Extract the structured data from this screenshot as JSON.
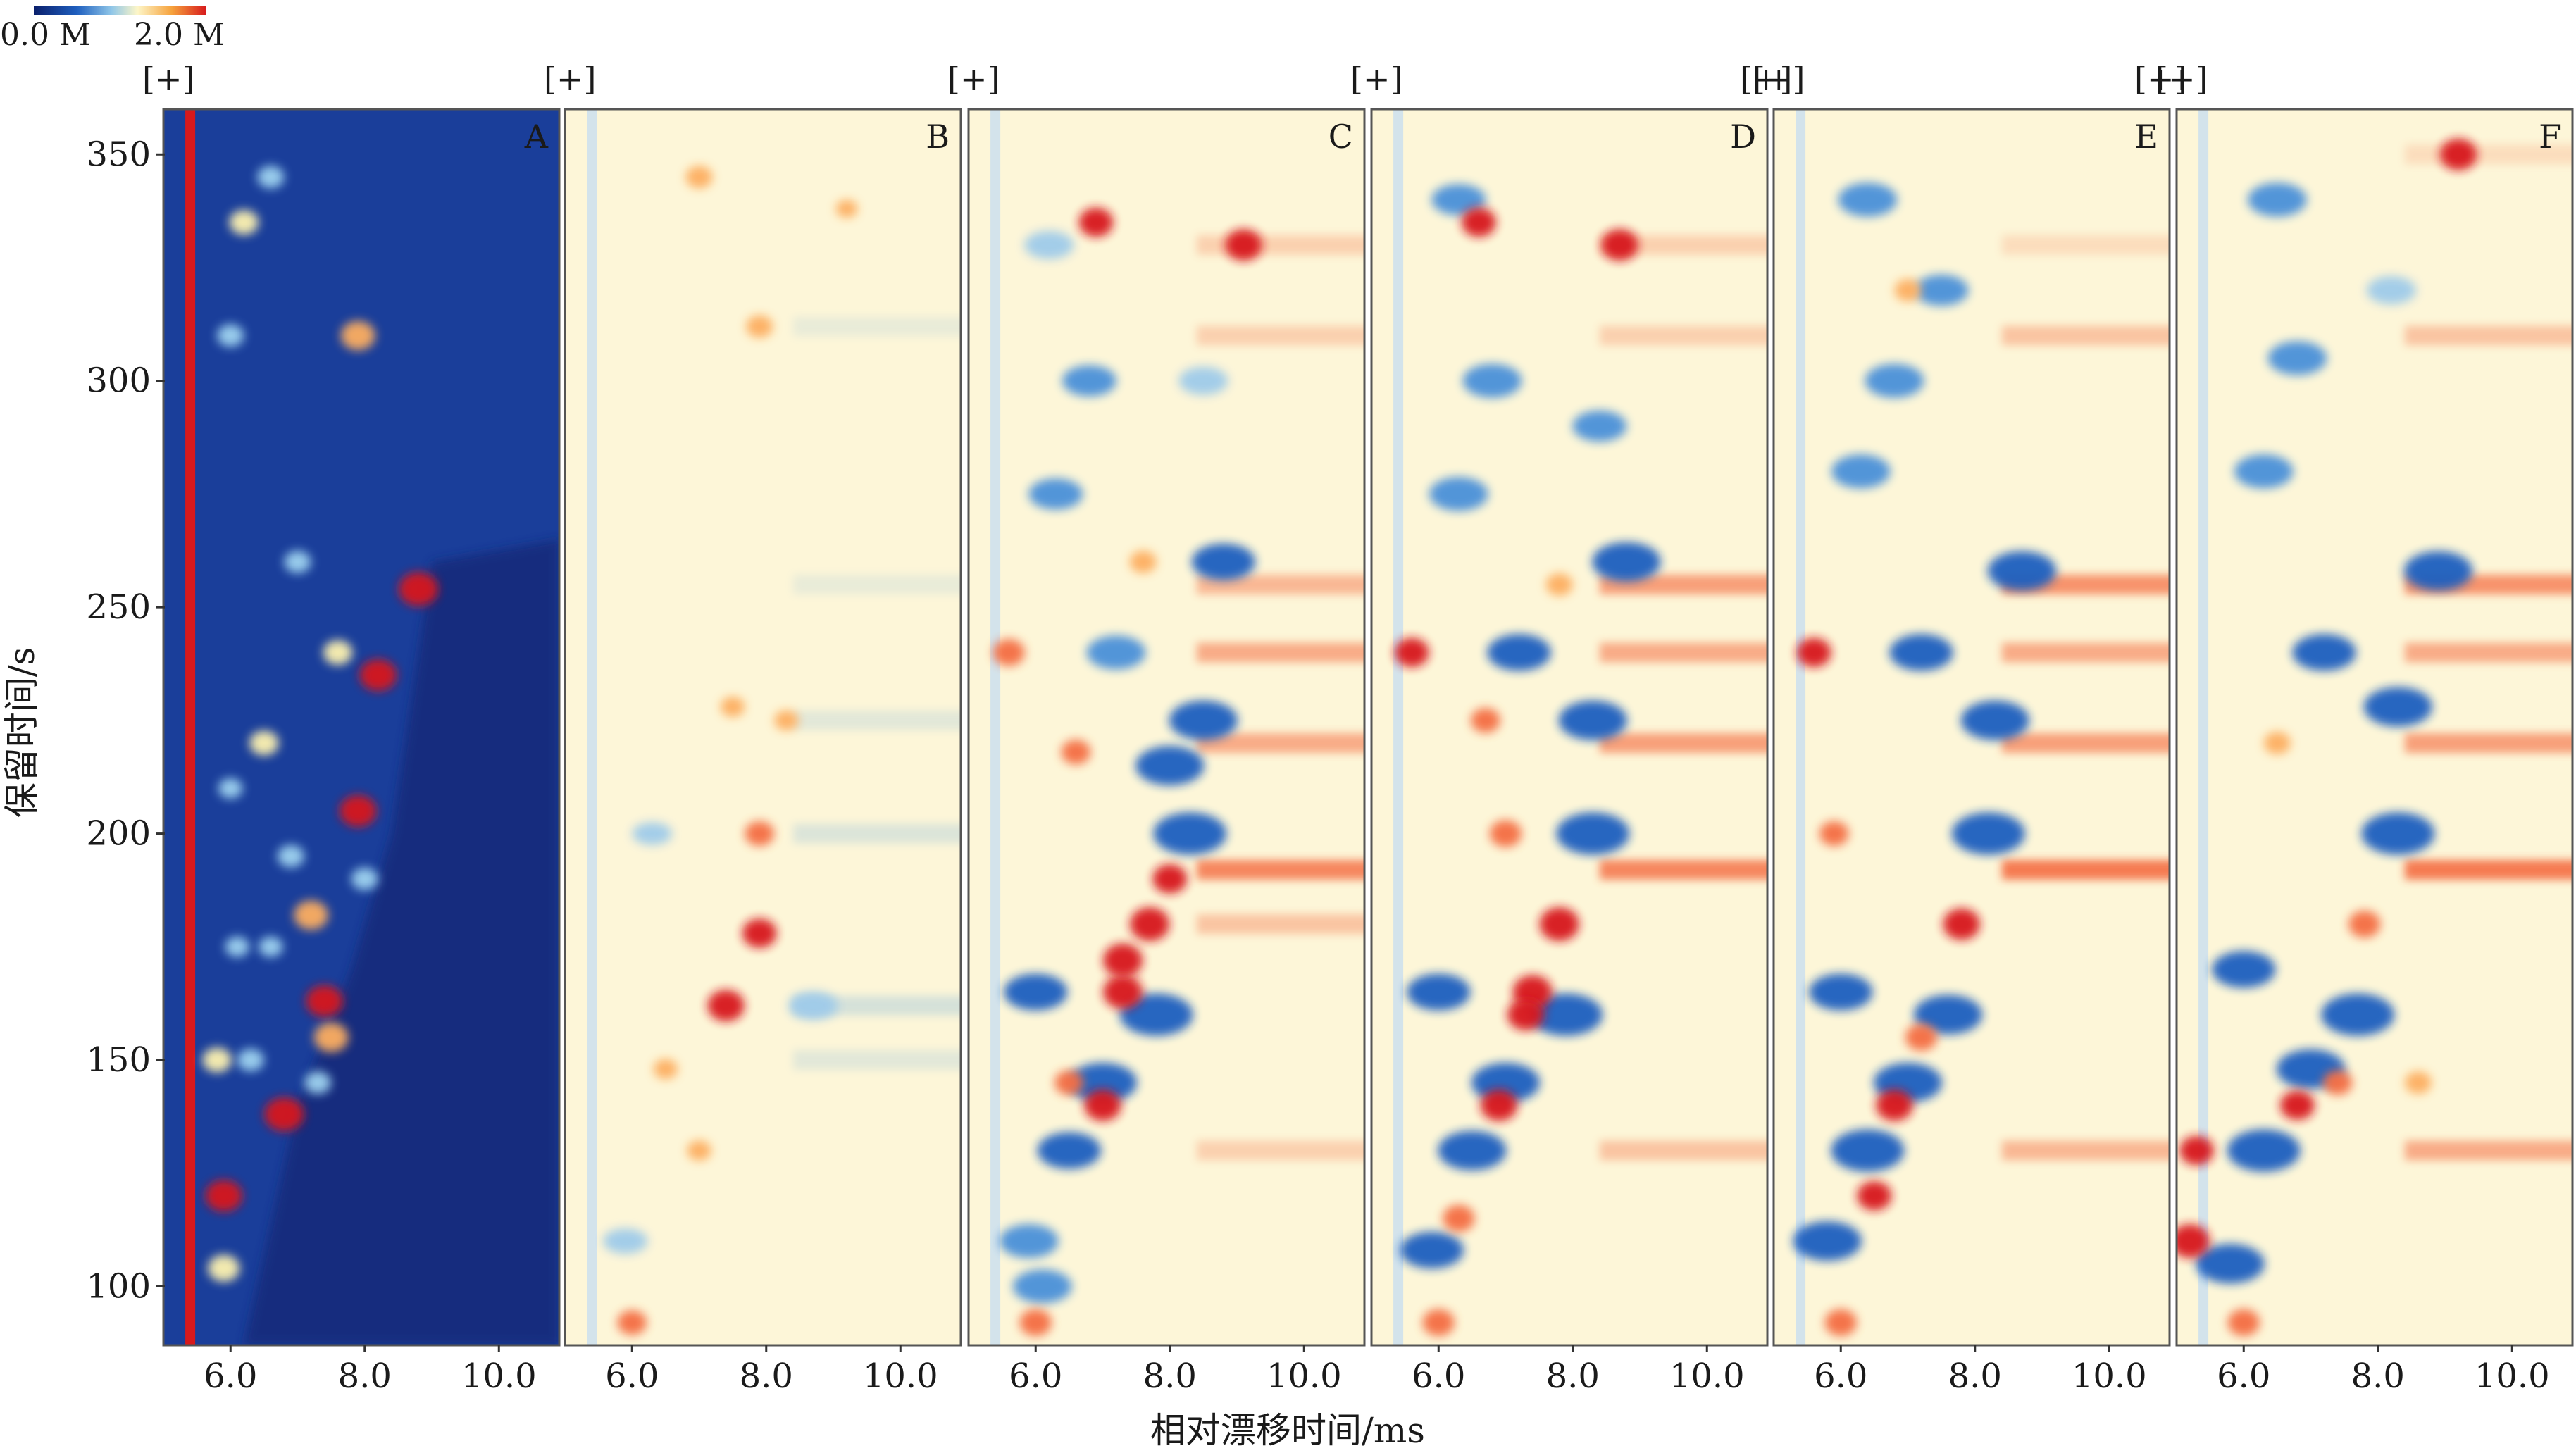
{
  "colorbar": {
    "min_label": "0.0 M",
    "max_label": "2.0 M",
    "colors": [
      "#0a1f6b",
      "#1f5fbf",
      "#8fc6e8",
      "#fdf6c8",
      "#f6a23c",
      "#d7191c"
    ]
  },
  "reference_colors": {
    "A": "#1a3e9a",
    "difference_neutral": "#fdf6d8",
    "positive": "#d7191c",
    "negative": "#1f5fbf"
  },
  "panel_marker": "[+]",
  "axis_font": "serif",
  "chart_data": {
    "type": "heatmap",
    "title": "",
    "xlabel": "相对漂移时间/ms",
    "ylabel": "保留时间/s",
    "xlim": [
      5.0,
      10.9
    ],
    "ylim": [
      87,
      360
    ],
    "x_ticks": [
      6.0,
      8.0,
      10.0
    ],
    "x_tick_labels": [
      "6.0",
      "8.0",
      "10.0"
    ],
    "y_ticks": [
      100,
      150,
      200,
      250,
      300,
      350
    ],
    "y_tick_labels": [
      "100",
      "150",
      "200",
      "250",
      "300",
      "350"
    ],
    "reactant_ion_peak_drift_ms": 5.4,
    "panels": [
      {
        "label": "A",
        "mode": "reference",
        "hot_spots": [
          {
            "x": 8.8,
            "y": 254,
            "v": 1.0
          },
          {
            "x": 8.2,
            "y": 235,
            "v": 0.9
          },
          {
            "x": 7.9,
            "y": 205,
            "v": 0.9
          },
          {
            "x": 7.9,
            "y": 310,
            "v": 0.8
          },
          {
            "x": 7.2,
            "y": 182,
            "v": 0.8
          },
          {
            "x": 7.4,
            "y": 163,
            "v": 0.9
          },
          {
            "x": 6.8,
            "y": 138,
            "v": 1.0
          },
          {
            "x": 5.9,
            "y": 120,
            "v": 0.9
          },
          {
            "x": 7.5,
            "y": 155,
            "v": 0.8
          },
          {
            "x": 5.9,
            "y": 104,
            "v": 0.7
          },
          {
            "x": 6.5,
            "y": 220,
            "v": 0.6
          },
          {
            "x": 6.2,
            "y": 335,
            "v": 0.6
          },
          {
            "x": 6.0,
            "y": 310,
            "v": 0.5
          },
          {
            "x": 6.6,
            "y": 345,
            "v": 0.5
          },
          {
            "x": 7.0,
            "y": 260,
            "v": 0.5
          },
          {
            "x": 7.6,
            "y": 240,
            "v": 0.6
          },
          {
            "x": 8.0,
            "y": 190,
            "v": 0.5
          },
          {
            "x": 6.9,
            "y": 195,
            "v": 0.5
          },
          {
            "x": 7.3,
            "y": 145,
            "v": 0.5
          },
          {
            "x": 6.3,
            "y": 150,
            "v": 0.5
          },
          {
            "x": 6.6,
            "y": 175,
            "v": 0.4
          },
          {
            "x": 6.1,
            "y": 175,
            "v": 0.4
          },
          {
            "x": 6.0,
            "y": 210,
            "v": 0.4
          },
          {
            "x": 5.8,
            "y": 150,
            "v": 0.6
          }
        ]
      },
      {
        "label": "B",
        "mode": "difference",
        "hot_spots": [
          {
            "x": 7.9,
            "y": 178,
            "v": 0.8
          },
          {
            "x": 7.4,
            "y": 162,
            "v": 0.9
          },
          {
            "x": 7.9,
            "y": 200,
            "v": 0.6
          },
          {
            "x": 7.9,
            "y": 312,
            "v": 0.5
          },
          {
            "x": 7.0,
            "y": 345,
            "v": 0.5
          },
          {
            "x": 6.0,
            "y": 92,
            "v": 0.6
          },
          {
            "x": 7.0,
            "y": 130,
            "v": 0.4
          },
          {
            "x": 6.5,
            "y": 148,
            "v": 0.4
          },
          {
            "x": 7.5,
            "y": 228,
            "v": 0.4
          },
          {
            "x": 8.3,
            "y": 225,
            "v": 0.4
          },
          {
            "x": 9.2,
            "y": 338,
            "v": 0.3
          }
        ],
        "cold_spots": [
          {
            "x": 8.7,
            "y": 162,
            "v": 0.5
          },
          {
            "x": 5.9,
            "y": 110,
            "v": 0.4
          },
          {
            "x": 6.3,
            "y": 200,
            "v": 0.3
          }
        ],
        "bands": [
          {
            "y": 312,
            "v": -0.15
          },
          {
            "y": 200,
            "v": -0.25
          },
          {
            "y": 162,
            "v": -0.3
          },
          {
            "y": 225,
            "v": -0.2
          },
          {
            "y": 255,
            "v": -0.15
          },
          {
            "y": 150,
            "v": -0.2
          }
        ]
      },
      {
        "label": "C",
        "mode": "difference",
        "hot_spots": [
          {
            "x": 7.3,
            "y": 165,
            "v": 1.0
          },
          {
            "x": 7.7,
            "y": 180,
            "v": 1.0
          },
          {
            "x": 7.3,
            "y": 172,
            "v": 1.0
          },
          {
            "x": 7.0,
            "y": 140,
            "v": 0.9
          },
          {
            "x": 8.0,
            "y": 190,
            "v": 0.8
          },
          {
            "x": 9.1,
            "y": 330,
            "v": 0.9
          },
          {
            "x": 6.9,
            "y": 335,
            "v": 0.8
          },
          {
            "x": 6.0,
            "y": 92,
            "v": 0.7
          },
          {
            "x": 5.6,
            "y": 240,
            "v": 0.7
          },
          {
            "x": 6.6,
            "y": 218,
            "v": 0.6
          },
          {
            "x": 7.6,
            "y": 260,
            "v": 0.5
          },
          {
            "x": 6.5,
            "y": 145,
            "v": 0.6
          }
        ],
        "cold_spots": [
          {
            "x": 8.3,
            "y": 200,
            "v": 1.0
          },
          {
            "x": 8.5,
            "y": 225,
            "v": 0.9
          },
          {
            "x": 8.0,
            "y": 215,
            "v": 0.9
          },
          {
            "x": 7.8,
            "y": 160,
            "v": 1.0
          },
          {
            "x": 7.0,
            "y": 145,
            "v": 0.9
          },
          {
            "x": 6.5,
            "y": 130,
            "v": 0.8
          },
          {
            "x": 8.8,
            "y": 260,
            "v": 0.8
          },
          {
            "x": 6.0,
            "y": 165,
            "v": 0.8
          },
          {
            "x": 7.2,
            "y": 240,
            "v": 0.7
          },
          {
            "x": 6.3,
            "y": 275,
            "v": 0.6
          },
          {
            "x": 6.8,
            "y": 300,
            "v": 0.6
          },
          {
            "x": 5.9,
            "y": 110,
            "v": 0.7
          },
          {
            "x": 6.2,
            "y": 330,
            "v": 0.5
          },
          {
            "x": 8.5,
            "y": 300,
            "v": 0.5
          },
          {
            "x": 6.1,
            "y": 100,
            "v": 0.7
          }
        ],
        "bands": [
          {
            "y": 330,
            "v": 0.3
          },
          {
            "y": 255,
            "v": 0.5
          },
          {
            "y": 240,
            "v": 0.6
          },
          {
            "y": 220,
            "v": 0.6
          },
          {
            "y": 192,
            "v": 0.9
          },
          {
            "y": 180,
            "v": 0.4
          },
          {
            "y": 130,
            "v": 0.3
          },
          {
            "y": 310,
            "v": 0.3
          }
        ]
      },
      {
        "label": "D",
        "mode": "difference",
        "hot_spots": [
          {
            "x": 7.4,
            "y": 165,
            "v": 1.0
          },
          {
            "x": 7.8,
            "y": 180,
            "v": 1.0
          },
          {
            "x": 7.3,
            "y": 160,
            "v": 0.9
          },
          {
            "x": 6.9,
            "y": 140,
            "v": 0.9
          },
          {
            "x": 8.7,
            "y": 330,
            "v": 0.9
          },
          {
            "x": 6.6,
            "y": 335,
            "v": 0.8
          },
          {
            "x": 6.0,
            "y": 92,
            "v": 0.7
          },
          {
            "x": 7.0,
            "y": 200,
            "v": 0.7
          },
          {
            "x": 5.6,
            "y": 240,
            "v": 0.8
          },
          {
            "x": 6.7,
            "y": 225,
            "v": 0.6
          },
          {
            "x": 7.8,
            "y": 255,
            "v": 0.5
          },
          {
            "x": 6.3,
            "y": 115,
            "v": 0.7
          }
        ],
        "cold_spots": [
          {
            "x": 8.3,
            "y": 200,
            "v": 1.0
          },
          {
            "x": 8.3,
            "y": 225,
            "v": 0.9
          },
          {
            "x": 7.9,
            "y": 160,
            "v": 1.0
          },
          {
            "x": 7.0,
            "y": 145,
            "v": 0.9
          },
          {
            "x": 6.5,
            "y": 130,
            "v": 0.9
          },
          {
            "x": 8.8,
            "y": 260,
            "v": 0.9
          },
          {
            "x": 6.0,
            "y": 165,
            "v": 0.8
          },
          {
            "x": 7.2,
            "y": 240,
            "v": 0.8
          },
          {
            "x": 6.3,
            "y": 275,
            "v": 0.7
          },
          {
            "x": 6.8,
            "y": 300,
            "v": 0.7
          },
          {
            "x": 5.9,
            "y": 108,
            "v": 0.8
          },
          {
            "x": 6.3,
            "y": 340,
            "v": 0.6
          },
          {
            "x": 8.4,
            "y": 290,
            "v": 0.6
          }
        ],
        "bands": [
          {
            "y": 330,
            "v": 0.3
          },
          {
            "y": 255,
            "v": 0.7
          },
          {
            "y": 240,
            "v": 0.6
          },
          {
            "y": 220,
            "v": 0.7
          },
          {
            "y": 192,
            "v": 0.9
          },
          {
            "y": 130,
            "v": 0.4
          },
          {
            "y": 310,
            "v": 0.3
          }
        ]
      },
      {
        "label": "E",
        "mode": "difference",
        "hot_spots": [
          {
            "x": 7.8,
            "y": 180,
            "v": 0.9
          },
          {
            "x": 6.8,
            "y": 140,
            "v": 0.9
          },
          {
            "x": 7.2,
            "y": 155,
            "v": 0.7
          },
          {
            "x": 5.6,
            "y": 240,
            "v": 0.8
          },
          {
            "x": 6.0,
            "y": 92,
            "v": 0.7
          },
          {
            "x": 6.5,
            "y": 120,
            "v": 0.8
          },
          {
            "x": 5.9,
            "y": 200,
            "v": 0.6
          },
          {
            "x": 7.0,
            "y": 320,
            "v": 0.5
          }
        ],
        "cold_spots": [
          {
            "x": 8.2,
            "y": 200,
            "v": 1.0
          },
          {
            "x": 8.3,
            "y": 225,
            "v": 0.9
          },
          {
            "x": 7.6,
            "y": 160,
            "v": 0.9
          },
          {
            "x": 7.0,
            "y": 145,
            "v": 0.9
          },
          {
            "x": 6.4,
            "y": 130,
            "v": 1.0
          },
          {
            "x": 8.7,
            "y": 258,
            "v": 0.9
          },
          {
            "x": 6.0,
            "y": 165,
            "v": 0.8
          },
          {
            "x": 7.2,
            "y": 240,
            "v": 0.8
          },
          {
            "x": 6.3,
            "y": 280,
            "v": 0.7
          },
          {
            "x": 6.8,
            "y": 300,
            "v": 0.7
          },
          {
            "x": 5.8,
            "y": 110,
            "v": 0.9
          },
          {
            "x": 6.4,
            "y": 340,
            "v": 0.7
          },
          {
            "x": 7.5,
            "y": 320,
            "v": 0.6
          }
        ],
        "bands": [
          {
            "y": 255,
            "v": 0.8
          },
          {
            "y": 240,
            "v": 0.6
          },
          {
            "y": 220,
            "v": 0.7
          },
          {
            "y": 192,
            "v": 1.0
          },
          {
            "y": 130,
            "v": 0.5
          },
          {
            "y": 310,
            "v": 0.4
          },
          {
            "y": 330,
            "v": 0.2
          }
        ]
      },
      {
        "label": "F",
        "mode": "difference",
        "hot_spots": [
          {
            "x": 9.2,
            "y": 350,
            "v": 0.9
          },
          {
            "x": 7.8,
            "y": 180,
            "v": 0.7
          },
          {
            "x": 6.8,
            "y": 140,
            "v": 0.8
          },
          {
            "x": 5.2,
            "y": 110,
            "v": 1.0
          },
          {
            "x": 5.3,
            "y": 130,
            "v": 0.8
          },
          {
            "x": 6.0,
            "y": 92,
            "v": 0.7
          },
          {
            "x": 7.4,
            "y": 145,
            "v": 0.6
          },
          {
            "x": 6.5,
            "y": 220,
            "v": 0.5
          },
          {
            "x": 8.6,
            "y": 145,
            "v": 0.5
          }
        ],
        "cold_spots": [
          {
            "x": 8.3,
            "y": 200,
            "v": 1.0
          },
          {
            "x": 8.3,
            "y": 228,
            "v": 0.9
          },
          {
            "x": 7.7,
            "y": 160,
            "v": 1.0
          },
          {
            "x": 7.0,
            "y": 148,
            "v": 0.9
          },
          {
            "x": 6.3,
            "y": 130,
            "v": 1.0
          },
          {
            "x": 8.9,
            "y": 258,
            "v": 0.9
          },
          {
            "x": 6.0,
            "y": 170,
            "v": 0.8
          },
          {
            "x": 7.2,
            "y": 240,
            "v": 0.8
          },
          {
            "x": 6.3,
            "y": 280,
            "v": 0.7
          },
          {
            "x": 6.8,
            "y": 305,
            "v": 0.7
          },
          {
            "x": 5.8,
            "y": 105,
            "v": 0.9
          },
          {
            "x": 6.5,
            "y": 340,
            "v": 0.7
          },
          {
            "x": 8.2,
            "y": 320,
            "v": 0.5
          }
        ],
        "bands": [
          {
            "y": 255,
            "v": 0.8
          },
          {
            "y": 240,
            "v": 0.6
          },
          {
            "y": 220,
            "v": 0.7
          },
          {
            "y": 192,
            "v": 1.0
          },
          {
            "y": 130,
            "v": 0.6
          },
          {
            "y": 310,
            "v": 0.4
          },
          {
            "y": 350,
            "v": 0.2
          }
        ]
      }
    ]
  }
}
